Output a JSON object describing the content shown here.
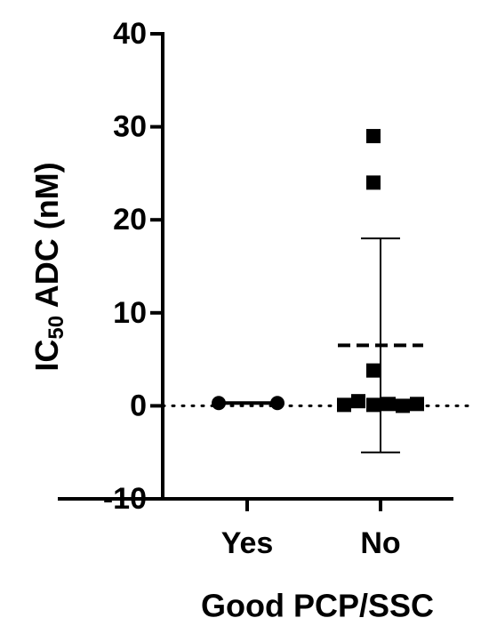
{
  "chart_data": {
    "type": "scatter",
    "y_label": [
      "IC",
      "50",
      " ADC (nM)"
    ],
    "x_label": "Good PCP/SSC",
    "categories": [
      "Yes",
      "No"
    ],
    "groups": [
      {
        "marker": "circle",
        "color": "#000000",
        "values": [
          0.3,
          0.3
        ],
        "mean": 0.3
      },
      {
        "marker": "square",
        "color": "#000000",
        "values": [
          29,
          24,
          3.8,
          0.1,
          0.5,
          0.1,
          0.2,
          0.0,
          0.2
        ],
        "mean": 6.5,
        "error": 11.5
      }
    ],
    "ylim": [
      -10,
      40
    ],
    "yticks": [
      -10,
      0,
      10,
      20,
      30,
      40
    ],
    "reference_line": 0
  }
}
